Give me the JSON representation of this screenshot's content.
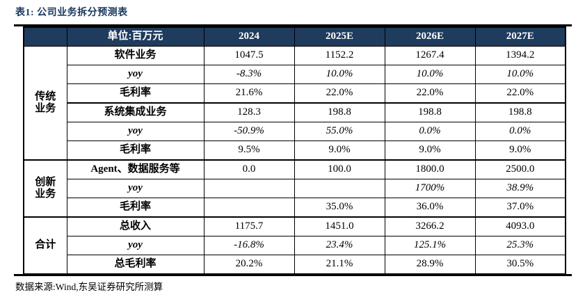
{
  "title": {
    "text": "表1:  公司业务拆分预测表"
  },
  "footer": {
    "text": "数据来源:Wind,东吴证券研究所测算"
  },
  "colors": {
    "header_bg": "#1f3b5e",
    "title_text": "#17365d",
    "border": "#000000",
    "page_bg": "#ffffff"
  },
  "table": {
    "corner_label": "",
    "unit_header": "单位:百万元",
    "year_headers": [
      "2024",
      "2025E",
      "2026E",
      "2027E"
    ],
    "sections": [
      {
        "group_label": "传统业务",
        "group_lines": [
          "传统",
          "业务"
        ],
        "rows": [
          {
            "label": "软件业务",
            "italic": false,
            "divider_above": false,
            "values": [
              "1047.5",
              "1152.2",
              "1267.4",
              "1394.2"
            ]
          },
          {
            "label": "yoy",
            "italic": true,
            "divider_above": false,
            "values": [
              "-8.3%",
              "10.0%",
              "10.0%",
              "10.0%"
            ]
          },
          {
            "label": "毛利率",
            "italic": false,
            "divider_above": false,
            "values": [
              "21.6%",
              "22.0%",
              "22.0%",
              "22.0%"
            ]
          },
          {
            "label": "系统集成业务",
            "italic": false,
            "divider_above": true,
            "values": [
              "128.3",
              "198.8",
              "198.8",
              "198.8"
            ]
          },
          {
            "label": "yoy",
            "italic": true,
            "divider_above": false,
            "values": [
              "-50.9%",
              "55.0%",
              "0.0%",
              "0.0%"
            ]
          },
          {
            "label": "毛利率",
            "italic": false,
            "divider_above": false,
            "values": [
              "9.5%",
              "9.0%",
              "9.0%",
              "9.0%"
            ]
          }
        ]
      },
      {
        "group_label": "创新业务",
        "group_lines": [
          "创新",
          "业务"
        ],
        "rows": [
          {
            "label": "Agent、数据服务等",
            "italic": false,
            "divider_above": true,
            "values": [
              "0.0",
              "100.0",
              "1800.0",
              "2500.0"
            ]
          },
          {
            "label": "yoy",
            "italic": true,
            "divider_above": false,
            "values": [
              "",
              "",
              "1700%",
              "38.9%"
            ]
          },
          {
            "label": "毛利率",
            "italic": false,
            "divider_above": false,
            "values": [
              "",
              "35.0%",
              "36.0%",
              "37.0%"
            ]
          }
        ]
      },
      {
        "group_label": "合计",
        "group_lines": [
          "合计"
        ],
        "rows": [
          {
            "label": "总收入",
            "italic": false,
            "divider_above": true,
            "values": [
              "1175.7",
              "1451.0",
              "3266.2",
              "4093.0"
            ]
          },
          {
            "label": "yoy",
            "italic": true,
            "divider_above": false,
            "values": [
              "-16.8%",
              "23.4%",
              "125.1%",
              "25.3%"
            ]
          },
          {
            "label": "总毛利率",
            "italic": false,
            "divider_above": false,
            "values": [
              "20.2%",
              "21.1%",
              "28.9%",
              "30.5%"
            ]
          }
        ]
      }
    ]
  }
}
